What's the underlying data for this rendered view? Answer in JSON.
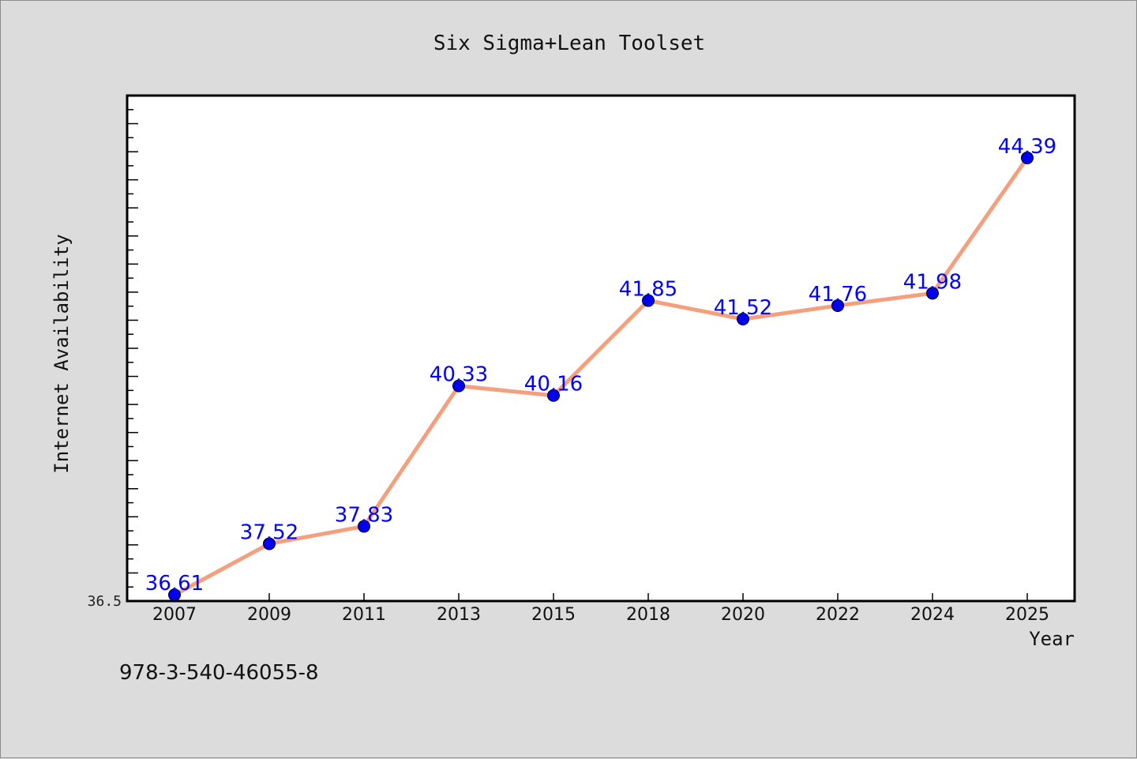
{
  "footer": {
    "isbn": "978-3-540-46055-8"
  },
  "chart_data": {
    "type": "line",
    "title": "Six Sigma+Lean Toolset",
    "xlabel": "Year",
    "ylabel": "Internet Availability",
    "categories": [
      "2007",
      "2009",
      "2011",
      "2013",
      "2015",
      "2018",
      "2020",
      "2022",
      "2024",
      "2025"
    ],
    "series": [
      {
        "values": [
          36.61,
          37.52,
          37.83,
          40.33,
          40.16,
          41.85,
          41.52,
          41.76,
          41.98,
          44.39
        ]
      }
    ],
    "data_labels": [
      "36.61",
      "37.52",
      "37.83",
      "40.33",
      "40.16",
      "41.85",
      "41.52",
      "41.76",
      "41.98",
      "44.39"
    ],
    "y_tick_labels": [
      "36.5"
    ],
    "ylim": [
      36.5,
      45.5
    ],
    "grid": false,
    "line_color": "#f4a07e",
    "marker_color": "#0000f0",
    "label_color": "#0000ff"
  }
}
